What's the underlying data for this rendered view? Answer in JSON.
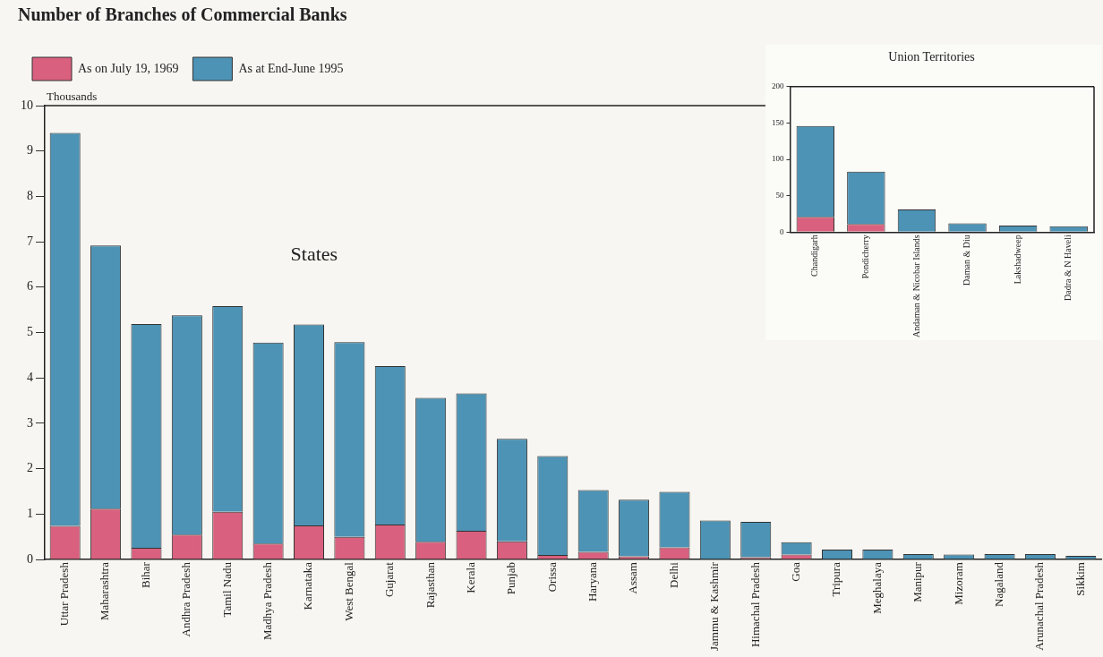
{
  "chart_data": [
    {
      "type": "bar",
      "title": "Number of Branches of Commercial Banks",
      "ylabel": "Thousands",
      "stacked": true,
      "legend": "top left",
      "grid": false,
      "annotations": [
        "States"
      ],
      "categories": [
        "Uttar Pradesh",
        "Maharashtra",
        "Bihar",
        "Andhra Pradesh",
        "Tamil Nadu",
        "Madhya Pradesh",
        "Karnataka",
        "West Bengal",
        "Gujarat",
        "Rajasthan",
        "Kerala",
        "Punjab",
        "Orissa",
        "Haryana",
        "Assam",
        "Delhi",
        "Jammu & Kashmir",
        "Himachal Pradesh",
        "Goa",
        "Tripura",
        "Meghalaya",
        "Manipur",
        "Mizoram",
        "Nagaland",
        "Arunachal Pradesh",
        "Sikkim"
      ],
      "ylim": [
        0,
        10
      ],
      "yticks": [
        0,
        1,
        2,
        3,
        4,
        5,
        6,
        7,
        8,
        9,
        10
      ],
      "series": [
        {
          "name": "As on July 19, 1969",
          "color": "#d9607e",
          "values": [
            0.74,
            1.12,
            0.26,
            0.55,
            1.05,
            0.35,
            0.75,
            0.5,
            0.77,
            0.39,
            0.63,
            0.4,
            0.1,
            0.17,
            0.07,
            0.27,
            0,
            0.05,
            0.11,
            0,
            0,
            0,
            0,
            0,
            0,
            0
          ]
        },
        {
          "name": "As at End-June 1995",
          "color": "#4d93b5",
          "values": [
            8.66,
            5.8,
            4.93,
            4.83,
            4.53,
            4.43,
            4.43,
            4.29,
            3.49,
            3.17,
            3.03,
            2.26,
            2.18,
            1.36,
            1.25,
            1.22,
            0.86,
            0.78,
            0.27,
            0.22,
            0.22,
            0.12,
            0.11,
            0.12,
            0.12,
            0.08
          ]
        }
      ]
    },
    {
      "type": "bar",
      "title": "Union Territories",
      "stacked": true,
      "grid": false,
      "categories": [
        "Chandigarh",
        "Pondicherry",
        "Andaman & Nicobar Islands",
        "Daman & Diu",
        "Lakshadweep",
        "Dadra & N Haveli"
      ],
      "ylim": [
        0,
        200
      ],
      "yticks": [
        0,
        50,
        100,
        150,
        200
      ],
      "series": [
        {
          "color": "#d9607e",
          "values": [
            21,
            11,
            0,
            0,
            0,
            0
          ]
        },
        {
          "color": "#4d93b5",
          "values": [
            125,
            72,
            31,
            12,
            9,
            8
          ]
        }
      ]
    }
  ]
}
